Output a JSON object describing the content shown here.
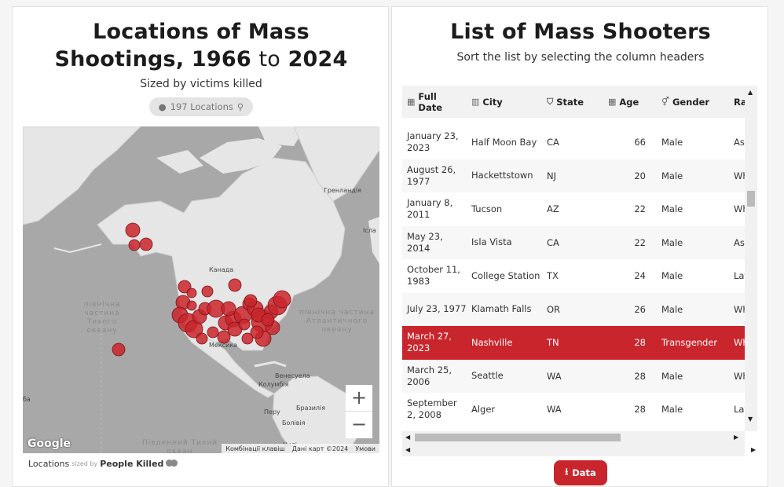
{
  "map_panel": {
    "title_line1": "Locations of Mass",
    "title_line2_a": "Shootings, 1966",
    "title_to": "to",
    "title_line2_b": "2024",
    "subtitle": "Sized by victims killed",
    "locations_pill": "197 Locations",
    "map": {
      "labels": {
        "greenland": "Гренландія",
        "iceland": "Ісла",
        "canada": "Канада",
        "mexico": "Мексика",
        "venezuela": "Венесуела",
        "colombia": "Колумбія",
        "peru": "Перу",
        "brazil": "Бразилія",
        "bolivia": "Болівія",
        "chile": "Чилі",
        "cuba": "ба"
      },
      "ocean_north_pacific": "північна частина Тихого океану",
      "ocean_north_atlantic": "північна частина Атлантичного океану",
      "ocean_south": "Південний Тихий океан",
      "zoom_in": "+",
      "zoom_out": "−",
      "google_logo": "Google",
      "attribution": [
        "Комбінації клавіш",
        "Дані карт ©2024",
        "Умови"
      ]
    },
    "legend": {
      "prefix": "Locations",
      "sized_by": "sized by",
      "measure": "People Killed"
    },
    "marker_color": "#c9252c"
  },
  "list_panel": {
    "title": "List of Mass Shooters",
    "subtitle": "Sort the list by selecting the column headers",
    "columns": [
      {
        "icon": "calendar-icon",
        "glyph": "▦",
        "label": "Full Date"
      },
      {
        "icon": "city-icon",
        "glyph": "▥",
        "label": "City"
      },
      {
        "icon": "shield-icon",
        "glyph": "⛉",
        "label": "State"
      },
      {
        "icon": "calendar-icon",
        "glyph": "▦",
        "label": "Age"
      },
      {
        "icon": "gender-icon",
        "glyph": "⚥",
        "label": "Gender"
      },
      {
        "icon": "race-icon",
        "glyph": "",
        "label": "Rac"
      }
    ],
    "rows": [
      {
        "date": "January 23, 2023",
        "city": "Half Moon Bay",
        "state": "CA",
        "age": "66",
        "gender": "Male",
        "race": "Asi"
      },
      {
        "date": "August 26, 1977",
        "city": "Hackettstown",
        "state": "NJ",
        "age": "20",
        "gender": "Male",
        "race": "Wh"
      },
      {
        "date": "January 8, 2011",
        "city": "Tucson",
        "state": "AZ",
        "age": "22",
        "gender": "Male",
        "race": "Wh"
      },
      {
        "date": "May 23, 2014",
        "city": "Isla Vista",
        "state": "CA",
        "age": "22",
        "gender": "Male",
        "race": "Asi"
      },
      {
        "date": "October 11, 1983",
        "city": "College Station",
        "state": "TX",
        "age": "24",
        "gender": "Male",
        "race": "Lat"
      },
      {
        "date": "July 23, 1977",
        "city": "Klamath Falls",
        "state": "OR",
        "age": "26",
        "gender": "Male",
        "race": "Wh"
      },
      {
        "date": "March 27, 2023",
        "city": "Nashville",
        "state": "TN",
        "age": "28",
        "gender": "Transgender",
        "race": "Wh",
        "highlighted": true
      },
      {
        "date": "March 25, 2006",
        "city": "Seattle",
        "state": "WA",
        "age": "28",
        "gender": "Male",
        "race": "Wh"
      },
      {
        "date": "September 2, 2008",
        "city": "Alger",
        "state": "WA",
        "age": "28",
        "gender": "Male",
        "race": "Lat"
      }
    ],
    "data_button": "Data",
    "highlight_color": "#c9252c"
  }
}
